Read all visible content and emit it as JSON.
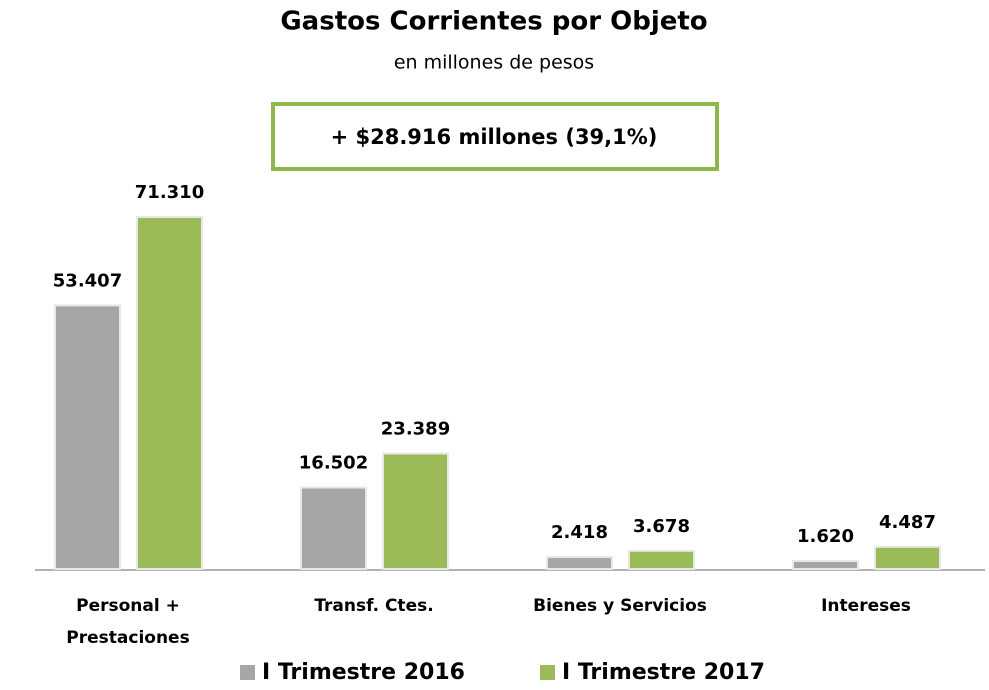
{
  "chart_data": {
    "type": "bar",
    "title": "Gastos Corrientes por Objeto",
    "subtitle": "en millones de pesos",
    "annotation": "+ $28.916 millones (39,1%)",
    "categories": [
      "Personal +\nPrestaciones",
      "Transf. Ctes.",
      "Bienes y Servicios",
      "Intereses"
    ],
    "series": [
      {
        "name": "I Trimestre 2016",
        "color": "#a6a6a6",
        "values": [
          53407,
          16502,
          2418,
          1620
        ],
        "value_labels": [
          "53.407",
          "16.502",
          "2.418",
          "1.620"
        ]
      },
      {
        "name": "I Trimestre 2017",
        "color": "#9bbb59",
        "values": [
          71310,
          23389,
          3678,
          4487
        ],
        "value_labels": [
          "71.310",
          "23.389",
          "3.678",
          "4.487"
        ]
      }
    ],
    "legend": "bottom"
  }
}
